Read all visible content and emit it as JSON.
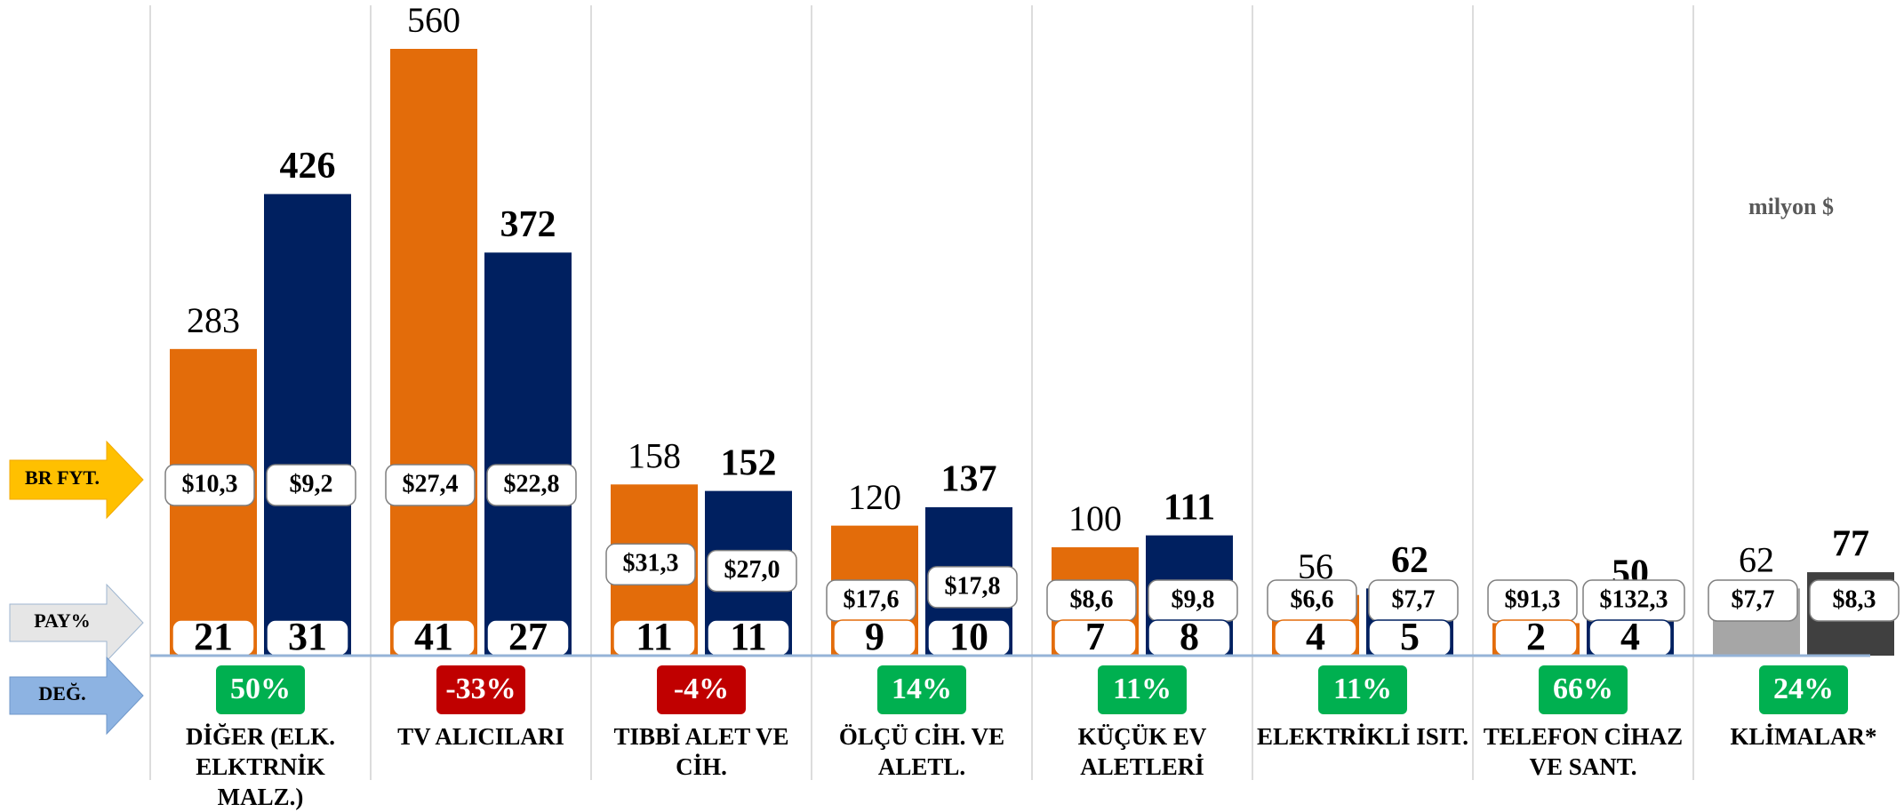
{
  "chart_data": {
    "type": "bar",
    "unit_label": "milyon $",
    "categories": [
      "DİĞER (ELK. ELKTRNİK MALZ.)",
      "TV ALICILARI",
      "TIBBİ ALET VE CİH.",
      "ÖLÇÜ CİH. VE ALETL.",
      "KÜÇÜK EV ALETLERİ",
      "ELEKTRİKLİ ISIT.",
      "TELEFON CİHAZ VE SANT.",
      "KLİMALAR*"
    ],
    "ylim": [
      0,
      560
    ],
    "series": [
      {
        "values": [
          283,
          560,
          158,
          120,
          100,
          56,
          30,
          62
        ],
        "colors": [
          "#e36c0a",
          "#e36c0a",
          "#e36c0a",
          "#e36c0a",
          "#e36c0a",
          "#e36c0a",
          "#e36c0a",
          "#a6a6a6"
        ]
      },
      {
        "values": [
          426,
          372,
          152,
          137,
          111,
          62,
          50,
          77
        ],
        "colors": [
          "#002060",
          "#002060",
          "#002060",
          "#002060",
          "#002060",
          "#002060",
          "#002060",
          "#404040"
        ]
      }
    ],
    "price": {
      "label": "BR FYT.",
      "series": [
        {
          "values": [
            10.3,
            27.4,
            31.3,
            17.6,
            8.6,
            6.6,
            91.3,
            7.7
          ],
          "value_labels": [
            "$10,3",
            "$27,4",
            "$31,3",
            "$17,6",
            "$8,6",
            "$6,6",
            "$91,3",
            "$7,7"
          ]
        },
        {
          "values": [
            9.2,
            22.8,
            27.0,
            17.8,
            9.8,
            7.7,
            132.3,
            8.3
          ],
          "value_labels": [
            "$9,2",
            "$22,8",
            "$27,0",
            "$17,8",
            "$9,8",
            "$7,7",
            "$132,3",
            "$8,3"
          ]
        }
      ]
    },
    "share": {
      "label": "PAY%",
      "series": [
        {
          "values": [
            21,
            41,
            11,
            9,
            7,
            4,
            2,
            null
          ]
        },
        {
          "values": [
            31,
            27,
            11,
            10,
            8,
            5,
            4,
            null
          ]
        }
      ]
    },
    "change": {
      "label": "DEĞ.",
      "positive_color": "#00b050",
      "negative_color": "#c00000",
      "values": [
        50,
        -33,
        -4,
        14,
        11,
        11,
        66,
        24
      ],
      "value_labels": [
        "50%",
        "-33%",
        "-4%",
        "14%",
        "11%",
        "11%",
        "66%",
        "24%"
      ]
    }
  }
}
